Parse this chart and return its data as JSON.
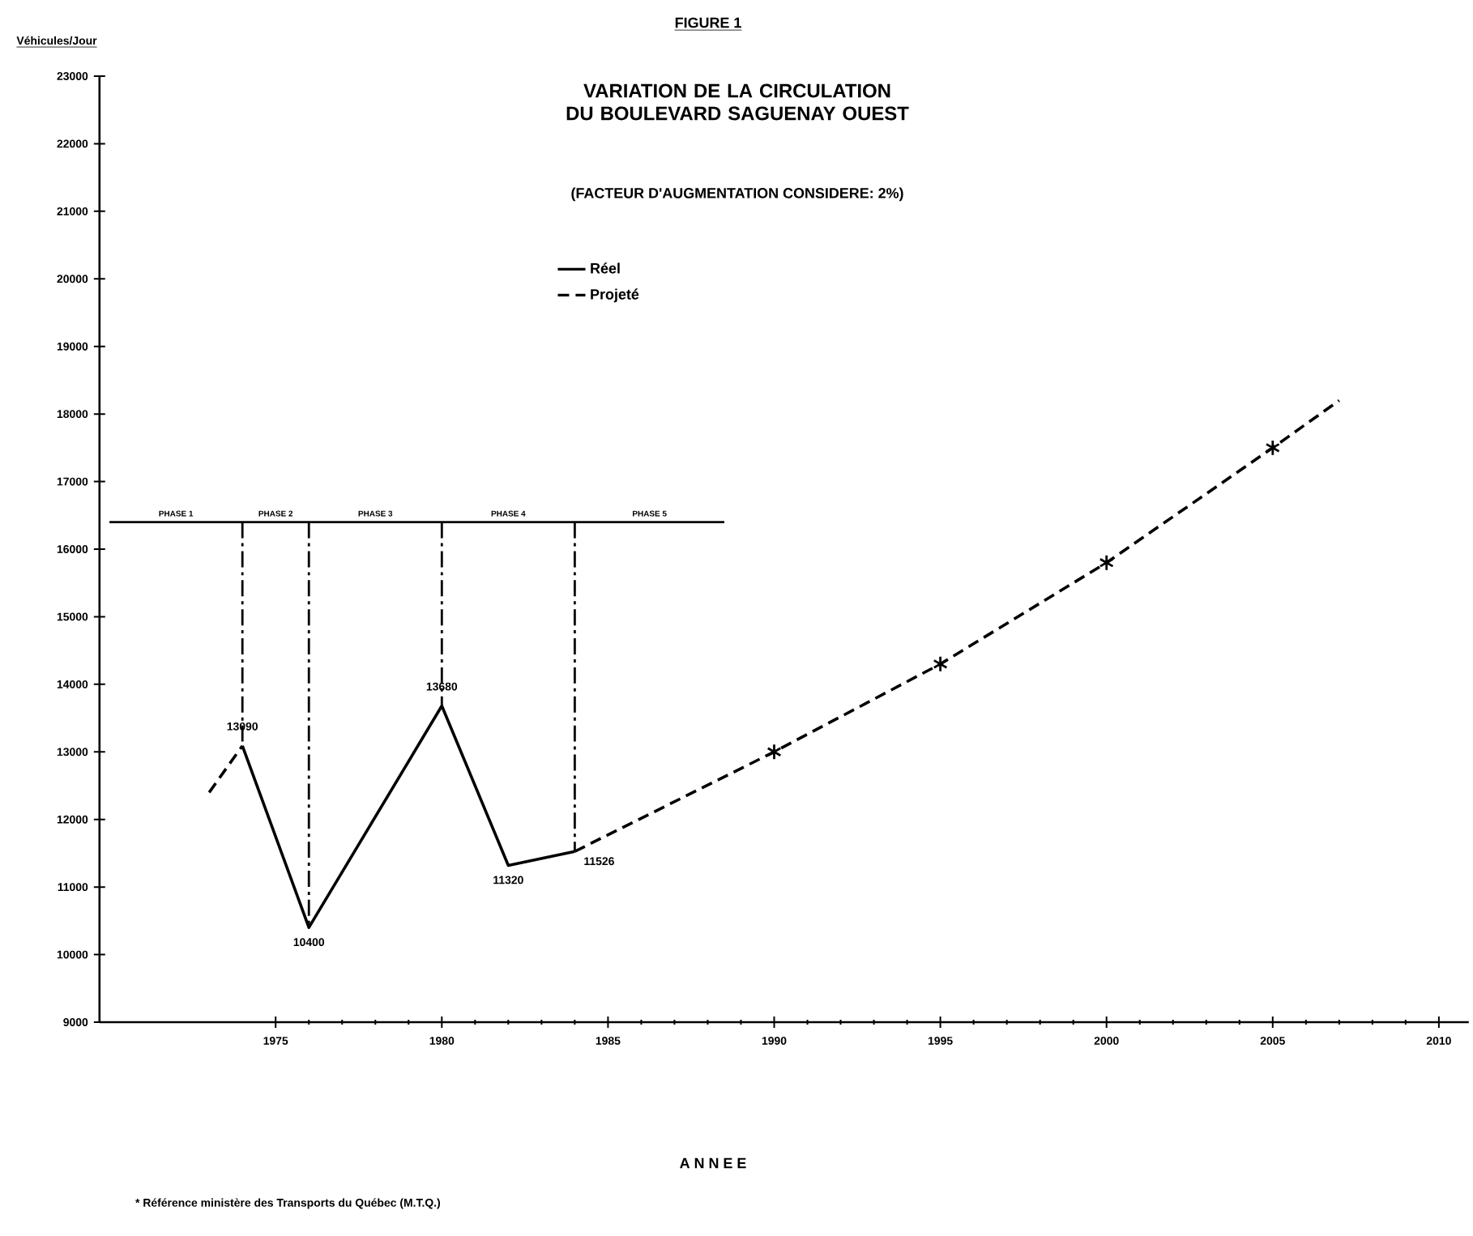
{
  "chart_data": {
    "type": "line",
    "title": "VARIATION DE LA CIRCULATION DU BOULEVARD SAGUENAY OUEST",
    "subtitle": "(FACTEUR D'AUGMENTATION CONSIDERE: 2%)",
    "ylabel": "Véhicules/Jour",
    "annotations": [
      "FIGURE 1",
      "A N N E E",
      "* Référence ministère des Transports du Québec (M.T.Q.)",
      "PHASE 1",
      "PHASE 2",
      "PHASE 3",
      "PHASE 4",
      "PHASE 5"
    ],
    "series": [
      {
        "name": "Réel",
        "color": "#000000",
        "line_style": "solid",
        "x": [
          1974,
          1976,
          1980,
          1982,
          1984
        ],
        "values": [
          13090,
          10400,
          13680,
          11320,
          11526
        ],
        "value_labels": [
          "13090",
          "10400",
          "13680",
          "11320",
          "11526"
        ]
      },
      {
        "name": "Projeté",
        "color": "#000000",
        "line_style": "dashed",
        "x": [
          1973,
          1974
        ],
        "values": [
          12400,
          13090
        ]
      },
      {
        "color": "#000000",
        "line_style": "dashed",
        "x": [
          1984,
          1990,
          1995,
          2000,
          2005,
          2007
        ],
        "values": [
          11526,
          13000,
          14300,
          15800,
          17500,
          18200
        ]
      },
      {
        "type": "scatter",
        "marker": "cross",
        "color": "#000000",
        "x": [
          1990,
          1995,
          2000,
          2005
        ],
        "values": [
          13000,
          14300,
          15800,
          17500
        ]
      }
    ],
    "ref_lines": [
      {
        "axis": "y",
        "value": 16400
      },
      {
        "axis": "x",
        "value": 1974
      },
      {
        "axis": "x",
        "value": 1976
      },
      {
        "axis": "x",
        "value": 1980
      },
      {
        "axis": "x",
        "value": 1984
      }
    ],
    "xlim": [
      1969.7,
      2010.9
    ],
    "ylim": [
      9000,
      23000
    ],
    "xticks": [
      1975,
      1980,
      1985,
      1990,
      1995,
      2000,
      2005,
      2010
    ],
    "yticks": [
      9000,
      10000,
      11000,
      12000,
      13000,
      14000,
      15000,
      16000,
      17000,
      18000,
      19000,
      20000,
      21000,
      22000,
      23000
    ],
    "legend": "top",
    "grid": false
  }
}
